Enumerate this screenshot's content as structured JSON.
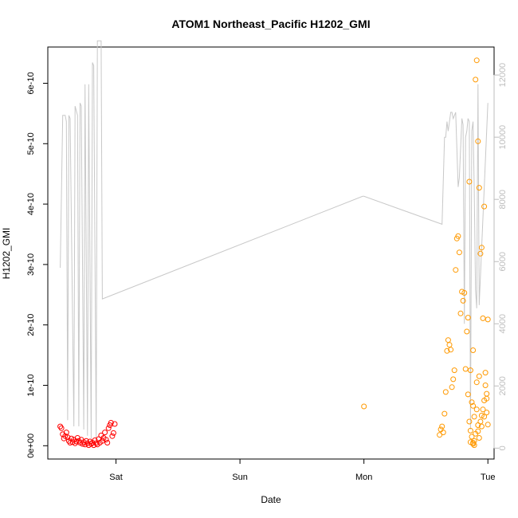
{
  "chart_data": {
    "type": "scatter",
    "title": "ATOM1 Northeast_Pacific H1202_GMI",
    "xlabel": "Date",
    "ylabel": "H1202_GMI",
    "x_ticks": [
      {
        "label": "Sat",
        "day": 1.0
      },
      {
        "label": "Sun",
        "day": 2.0
      },
      {
        "label": "Mon",
        "day": 3.0
      },
      {
        "label": "Tue",
        "day": 4.0
      }
    ],
    "x_range_days": [
      0.45,
      4.05
    ],
    "y_ticks": [
      {
        "label": "0e+00",
        "value": 0
      },
      {
        "label": "1e-10",
        "value": 1e-10
      },
      {
        "label": "2e-10",
        "value": 2e-10
      },
      {
        "label": "3e-10",
        "value": 3e-10
      },
      {
        "label": "4e-10",
        "value": 4e-10
      },
      {
        "label": "5e-10",
        "value": 5e-10
      },
      {
        "label": "6e-10",
        "value": 6e-10
      }
    ],
    "ylim": [
      -2.2e-11,
      6.6e-10
    ],
    "y2_ticks": [
      {
        "label": "0",
        "value": 0
      },
      {
        "label": "2000",
        "value": 2000
      },
      {
        "label": "4000",
        "value": 4000
      },
      {
        "label": "6000",
        "value": 6000
      },
      {
        "label": "8000",
        "value": 8000
      },
      {
        "label": "10000",
        "value": 10000
      },
      {
        "label": "12000",
        "value": 12000
      }
    ],
    "y2lim": [
      -350,
      12900
    ],
    "colors": {
      "series1": "#ff0000",
      "series2": "#ff9900",
      "altitude": "#c8c8c8",
      "axis": "#000000",
      "axis_right": "#bdbdbd"
    },
    "series": [
      {
        "color": "#ff0000",
        "points": [
          [
            0.55,
            3.2e-11
          ],
          [
            0.56,
            2.9e-11
          ],
          [
            0.57,
            1.9e-11
          ],
          [
            0.58,
            1.2e-11
          ],
          [
            0.59,
            1.6e-11
          ],
          [
            0.6,
            2.2e-11
          ],
          [
            0.61,
            1.4e-11
          ],
          [
            0.62,
            8e-12
          ],
          [
            0.63,
            5e-12
          ],
          [
            0.64,
            1.2e-11
          ],
          [
            0.65,
            6e-12
          ],
          [
            0.66,
            1e-11
          ],
          [
            0.67,
            4e-12
          ],
          [
            0.68,
            7e-12
          ],
          [
            0.69,
            1.3e-11
          ],
          [
            0.7,
            8e-12
          ],
          [
            0.71,
            5e-12
          ],
          [
            0.72,
            1e-11
          ],
          [
            0.73,
            3e-12
          ],
          [
            0.74,
            6e-12
          ],
          [
            0.75,
            2e-12
          ],
          [
            0.76,
            8e-12
          ],
          [
            0.77,
            4e-12
          ],
          [
            0.78,
            1e-12
          ],
          [
            0.79,
            7e-12
          ],
          [
            0.8,
            3e-12
          ],
          [
            0.81,
            5e-12
          ],
          [
            0.82,
            1e-12
          ],
          [
            0.83,
            9e-12
          ],
          [
            0.84,
            4e-12
          ],
          [
            0.85,
            2e-12
          ],
          [
            0.86,
            1.1e-11
          ],
          [
            0.87,
            5e-12
          ],
          [
            0.88,
            1.7e-11
          ],
          [
            0.89,
            8e-12
          ],
          [
            0.9,
            1.3e-11
          ],
          [
            0.91,
            2.2e-11
          ],
          [
            0.92,
            1e-11
          ],
          [
            0.93,
            5e-12
          ],
          [
            0.94,
            2.9e-11
          ],
          [
            0.95,
            3.4e-11
          ],
          [
            0.96,
            3.8e-11
          ],
          [
            0.97,
            1.6e-11
          ],
          [
            0.98,
            2.1e-11
          ],
          [
            0.99,
            3.6e-11
          ]
        ]
      },
      {
        "color": "#ff9900",
        "points": [
          [
            3.0,
            6.5e-11
          ],
          [
            3.61,
            1.8e-11
          ],
          [
            3.62,
            2.7e-11
          ],
          [
            3.63,
            3.2e-11
          ],
          [
            3.64,
            2.2e-11
          ],
          [
            3.65,
            5.3e-11
          ],
          [
            3.66,
            8.9e-11
          ],
          [
            3.67,
            1.57e-10
          ],
          [
            3.68,
            1.75e-10
          ],
          [
            3.69,
            1.67e-10
          ],
          [
            3.7,
            1.59e-10
          ],
          [
            3.71,
            9.7e-11
          ],
          [
            3.72,
            1.1e-10
          ],
          [
            3.73,
            1.25e-10
          ],
          [
            3.74,
            2.91e-10
          ],
          [
            3.75,
            3.43e-10
          ],
          [
            3.76,
            3.47e-10
          ],
          [
            3.77,
            3.2e-10
          ],
          [
            3.78,
            2.19e-10
          ],
          [
            3.79,
            2.55e-10
          ],
          [
            3.8,
            2.4e-10
          ],
          [
            3.81,
            2.53e-10
          ],
          [
            3.82,
            1.27e-10
          ],
          [
            3.83,
            1.89e-10
          ],
          [
            3.84,
            2.12e-10
          ],
          [
            3.85,
            4.37e-10
          ],
          [
            3.86,
            1.25e-10
          ],
          [
            3.87,
            7.2e-11
          ],
          [
            3.88,
            6.6e-11
          ],
          [
            3.89,
            4.8e-11
          ],
          [
            3.9,
            6.06e-10
          ],
          [
            3.91,
            6.38e-10
          ],
          [
            3.92,
            5.04e-10
          ],
          [
            3.93,
            4.27e-10
          ],
          [
            3.94,
            3.18e-10
          ],
          [
            3.95,
            3.28e-10
          ],
          [
            3.96,
            2.11e-10
          ],
          [
            3.97,
            3.96e-10
          ],
          [
            3.98,
            1.21e-10
          ],
          [
            3.99,
            8.6e-11
          ],
          [
            4.0,
            2.09e-10
          ],
          [
            3.85,
            4e-11
          ],
          [
            3.86,
            2.5e-11
          ],
          [
            3.87,
            1.5e-11
          ],
          [
            3.88,
            5e-12
          ],
          [
            3.89,
            1e-12
          ],
          [
            3.9,
            2e-11
          ],
          [
            3.91,
            6e-11
          ],
          [
            3.92,
            3.4e-11
          ],
          [
            3.93,
            1.3e-11
          ],
          [
            3.94,
            4e-11
          ],
          [
            3.95,
            5e-11
          ],
          [
            3.96,
            6e-11
          ],
          [
            3.97,
            7.5e-11
          ],
          [
            3.98,
            1e-10
          ],
          [
            3.99,
            5.5e-11
          ],
          [
            4.0,
            3.5e-11
          ],
          [
            3.84,
            8.5e-11
          ],
          [
            3.88,
            1.58e-10
          ],
          [
            3.91,
            1.05e-10
          ],
          [
            3.93,
            1.15e-10
          ],
          [
            3.95,
            3.2e-11
          ],
          [
            3.97,
            4.8e-11
          ],
          [
            3.99,
            7.8e-11
          ],
          [
            3.86,
            6e-12
          ],
          [
            3.88,
            3e-12
          ],
          [
            3.89,
            8e-12
          ],
          [
            3.92,
            2.4e-11
          ]
        ]
      }
    ],
    "altitude_line": {
      "axis": "right",
      "points": [
        [
          0.55,
          5800
        ],
        [
          0.57,
          10700
        ],
        [
          0.59,
          10700
        ],
        [
          0.6,
          10500
        ],
        [
          0.61,
          900
        ],
        [
          0.62,
          10700
        ],
        [
          0.63,
          10600
        ],
        [
          0.66,
          700
        ],
        [
          0.67,
          11000
        ],
        [
          0.69,
          10700
        ],
        [
          0.7,
          700
        ],
        [
          0.71,
          11100
        ],
        [
          0.72,
          11000
        ],
        [
          0.74,
          600
        ],
        [
          0.75,
          11700
        ],
        [
          0.77,
          400
        ],
        [
          0.78,
          11700
        ],
        [
          0.8,
          300
        ],
        [
          0.81,
          12400
        ],
        [
          0.82,
          12300
        ],
        [
          0.84,
          300
        ],
        [
          0.85,
          13100
        ],
        [
          0.88,
          13100
        ],
        [
          0.89,
          4800
        ],
        [
          2.99,
          8100
        ],
        [
          3.0,
          8100
        ],
        [
          3.63,
          7200
        ],
        [
          3.65,
          10000
        ],
        [
          3.66,
          10000
        ],
        [
          3.67,
          10500
        ],
        [
          3.68,
          10200
        ],
        [
          3.7,
          10800
        ],
        [
          3.71,
          10800
        ],
        [
          3.72,
          10600
        ],
        [
          3.74,
          10800
        ],
        [
          3.76,
          8400
        ],
        [
          3.77,
          8700
        ],
        [
          3.79,
          10600
        ],
        [
          3.8,
          10400
        ],
        [
          3.81,
          4000
        ],
        [
          3.82,
          10000
        ],
        [
          3.83,
          10200
        ],
        [
          3.84,
          10600
        ],
        [
          3.85,
          10500
        ],
        [
          3.86,
          600
        ],
        [
          3.87,
          10200
        ],
        [
          3.88,
          10500
        ],
        [
          3.89,
          8300
        ],
        [
          3.9,
          5100
        ],
        [
          3.91,
          4500
        ],
        [
          3.92,
          11700
        ],
        [
          3.93,
          4600
        ],
        [
          4.0,
          11100
        ]
      ]
    }
  }
}
